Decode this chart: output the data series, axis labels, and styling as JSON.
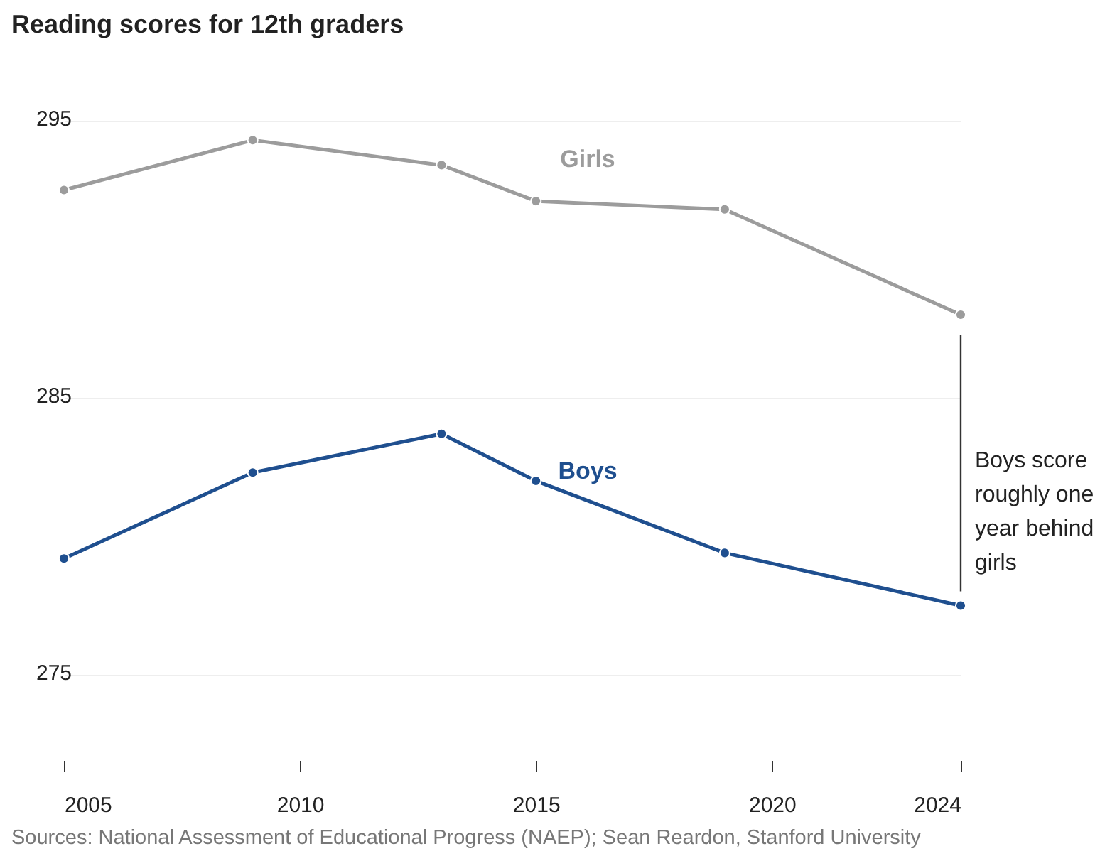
{
  "chart_data": {
    "type": "line",
    "title": "Reading scores for 12th graders",
    "x": [
      2005,
      2009,
      2013,
      2015,
      2019,
      2024
    ],
    "series": [
      {
        "name": "Girls",
        "color": "#9c9c9c",
        "values": [
          292.5,
          294.3,
          293.4,
          292.1,
          291.8,
          288.0
        ]
      },
      {
        "name": "Boys",
        "color": "#1f4f8f",
        "values": [
          279.2,
          282.3,
          283.7,
          282.0,
          279.4,
          277.5
        ]
      }
    ],
    "xlim": [
      2005,
      2024
    ],
    "xticks": [
      2005,
      2010,
      2015,
      2020,
      2024
    ],
    "ylim": [
      275,
      295
    ],
    "yticks": [
      275,
      285,
      295
    ],
    "grid": "y",
    "marker": "circle",
    "line_style": "solid",
    "annotations": [
      "Boys score roughly one year behind girls",
      "Sources: National Assessment of Educational Progress (NAEP); Sean Reardon, Stanford University"
    ]
  }
}
